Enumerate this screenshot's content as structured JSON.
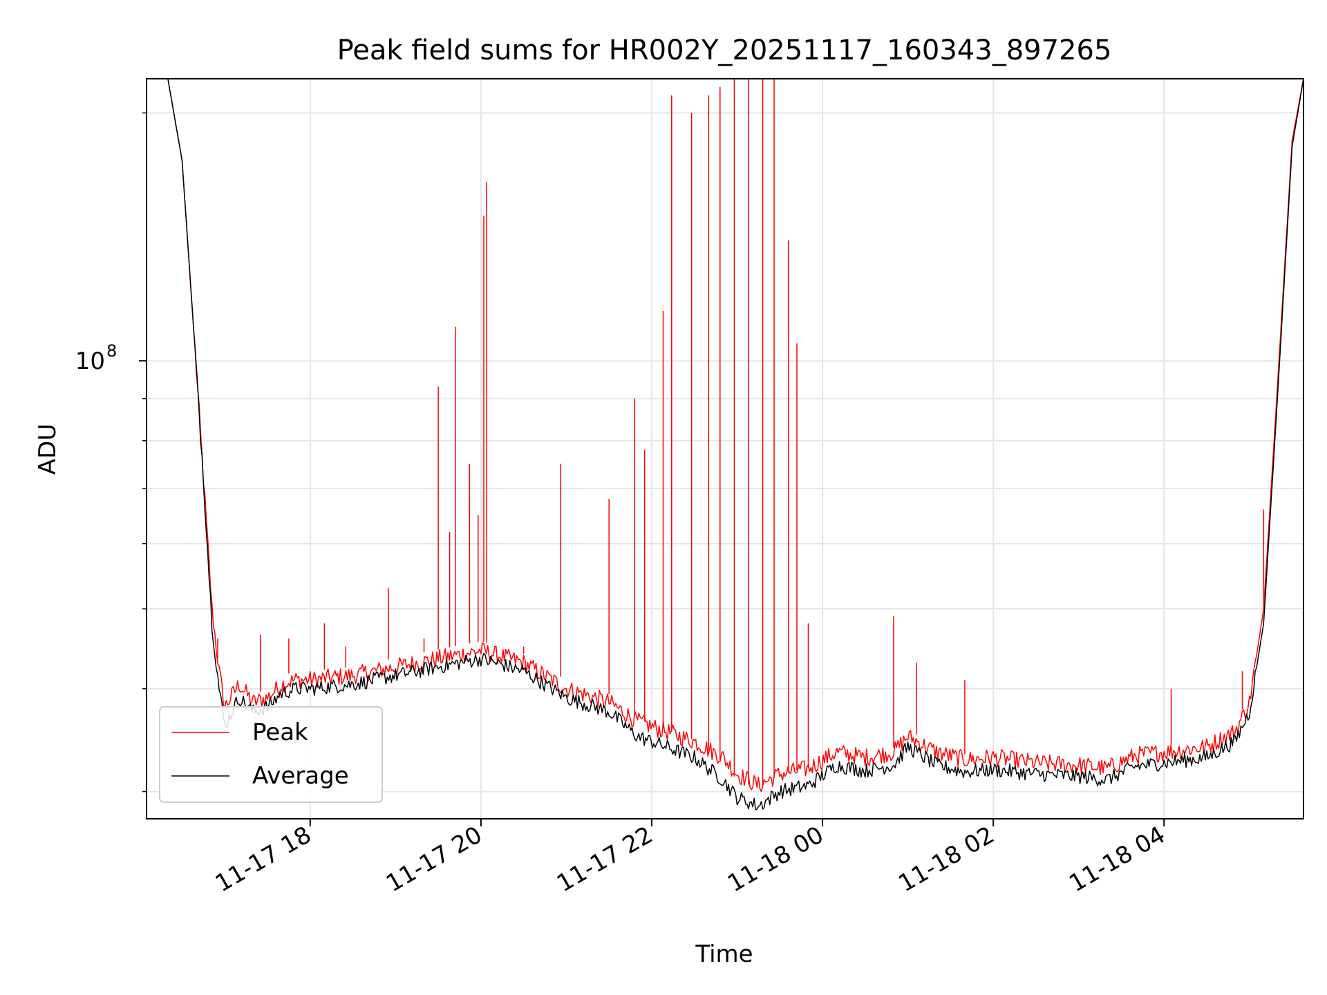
{
  "chart_data": {
    "type": "line",
    "title": "Peak field sums for HR002Y_20251117_160343_897265",
    "xlabel": "Time",
    "ylabel": "ADU",
    "y_scale": "log",
    "grid": true,
    "legend_position": "lower-left",
    "x_ticks": [
      "11-17 18",
      "11-17 20",
      "11-17 22",
      "11-18 00",
      "11-18 02",
      "11-18 04"
    ],
    "y_ticks": [
      {
        "label_base": "10",
        "label_exp": "8",
        "value": 100000000
      }
    ],
    "xlim": [
      "2025-11-17 16:05",
      "2025-11-18 05:38"
    ],
    "ylim": [
      27800000,
      220000000
    ],
    "series": [
      {
        "name": "Peak",
        "color": "#ff0000",
        "points": [
          [
            "2025-11-17 16:05",
            220000000
          ],
          [
            "2025-11-17 16:20",
            220000000
          ],
          [
            "2025-11-17 16:30",
            175000000
          ],
          [
            "2025-11-17 16:38",
            110000000
          ],
          [
            "2025-11-17 16:45",
            72000000
          ],
          [
            "2025-11-17 16:51",
            50000000
          ],
          [
            "2025-11-17 16:56",
            42000000
          ],
          [
            "2025-11-17 17:00",
            38000000
          ],
          [
            "2025-11-17 17:10",
            40500000
          ],
          [
            "2025-11-17 17:20",
            38500000
          ],
          [
            "2025-11-17 17:30",
            39000000
          ],
          [
            "2025-11-17 17:40",
            40500000
          ],
          [
            "2025-11-17 17:50",
            41000000
          ],
          [
            "2025-11-17 18:00",
            41000000
          ],
          [
            "2025-11-17 18:30",
            41500000
          ],
          [
            "2025-11-17 19:00",
            42500000
          ],
          [
            "2025-11-17 19:30",
            43500000
          ],
          [
            "2025-11-17 20:00",
            44500000
          ],
          [
            "2025-11-17 20:30",
            43000000
          ],
          [
            "2025-11-17 21:00",
            40000000
          ],
          [
            "2025-11-17 21:30",
            38500000
          ],
          [
            "2025-11-17 21:50",
            36500000
          ],
          [
            "2025-11-17 22:10",
            35500000
          ],
          [
            "2025-11-17 22:30",
            34500000
          ],
          [
            "2025-11-17 22:50",
            33000000
          ],
          [
            "2025-11-17 23:00",
            31500000
          ],
          [
            "2025-11-17 23:15",
            30500000
          ],
          [
            "2025-11-17 23:30",
            31500000
          ],
          [
            "2025-11-17 23:50",
            32000000
          ],
          [
            "2025-11-18 00:10",
            33500000
          ],
          [
            "2025-11-18 00:30",
            33000000
          ],
          [
            "2025-11-18 00:50",
            33500000
          ],
          [
            "2025-11-18 01:00",
            35000000
          ],
          [
            "2025-11-18 01:20",
            33500000
          ],
          [
            "2025-11-18 01:40",
            32800000
          ],
          [
            "2025-11-18 02:00",
            33000000
          ],
          [
            "2025-11-18 02:30",
            32500000
          ],
          [
            "2025-11-18 03:00",
            32300000
          ],
          [
            "2025-11-18 03:20",
            32000000
          ],
          [
            "2025-11-18 03:40",
            33200000
          ],
          [
            "2025-11-18 04:00",
            33500000
          ],
          [
            "2025-11-18 04:30",
            34000000
          ],
          [
            "2025-11-18 04:50",
            35500000
          ],
          [
            "2025-11-18 05:00",
            38500000
          ],
          [
            "2025-11-18 05:10",
            50000000
          ],
          [
            "2025-11-18 05:20",
            95000000
          ],
          [
            "2025-11-18 05:30",
            185000000
          ],
          [
            "2025-11-18 05:38",
            220000000
          ]
        ],
        "spikes": [
          [
            "2025-11-17 16:55",
            46000000
          ],
          [
            "2025-11-17 17:25",
            46500000
          ],
          [
            "2025-11-17 17:45",
            46000000
          ],
          [
            "2025-11-17 18:10",
            48000000
          ],
          [
            "2025-11-17 18:25",
            45000000
          ],
          [
            "2025-11-17 18:55",
            53000000
          ],
          [
            "2025-11-17 19:20",
            46000000
          ],
          [
            "2025-11-17 19:30",
            93000000
          ],
          [
            "2025-11-17 19:38",
            62000000
          ],
          [
            "2025-11-17 19:42",
            110000000
          ],
          [
            "2025-11-17 19:52",
            75000000
          ],
          [
            "2025-11-17 19:58",
            65000000
          ],
          [
            "2025-11-17 20:02",
            150000000
          ],
          [
            "2025-11-17 20:04",
            165000000
          ],
          [
            "2025-11-17 20:30",
            45000000
          ],
          [
            "2025-11-17 20:56",
            75000000
          ],
          [
            "2025-11-17 21:30",
            68000000
          ],
          [
            "2025-11-17 21:48",
            90000000
          ],
          [
            "2025-11-17 21:55",
            78000000
          ],
          [
            "2025-11-17 22:08",
            115000000
          ],
          [
            "2025-11-17 22:14",
            210000000
          ],
          [
            "2025-11-17 22:28",
            200000000
          ],
          [
            "2025-11-17 22:40",
            210000000
          ],
          [
            "2025-11-17 22:48",
            215000000
          ],
          [
            "2025-11-17 22:58",
            220000000
          ],
          [
            "2025-11-17 23:08",
            220000000
          ],
          [
            "2025-11-17 23:18",
            220000000
          ],
          [
            "2025-11-17 23:26",
            220000000
          ],
          [
            "2025-11-17 23:36",
            140000000
          ],
          [
            "2025-11-17 23:42",
            105000000
          ],
          [
            "2025-11-17 23:50",
            48000000
          ],
          [
            "2025-11-18 00:50",
            49000000
          ],
          [
            "2025-11-18 01:06",
            43000000
          ],
          [
            "2025-11-18 01:40",
            41000000
          ],
          [
            "2025-11-18 04:05",
            40000000
          ],
          [
            "2025-11-18 04:55",
            42000000
          ],
          [
            "2025-11-18 05:10",
            66000000
          ]
        ]
      },
      {
        "name": "Average",
        "color": "#000000",
        "points": [
          [
            "2025-11-17 16:05",
            220000000
          ],
          [
            "2025-11-17 16:20",
            220000000
          ],
          [
            "2025-11-17 16:30",
            175000000
          ],
          [
            "2025-11-17 16:38",
            110000000
          ],
          [
            "2025-11-17 16:45",
            72000000
          ],
          [
            "2025-11-17 16:51",
            48000000
          ],
          [
            "2025-11-17 16:56",
            40000000
          ],
          [
            "2025-11-17 17:00",
            36000000
          ],
          [
            "2025-11-17 17:10",
            39000000
          ],
          [
            "2025-11-17 17:20",
            37500000
          ],
          [
            "2025-11-17 17:30",
            38000000
          ],
          [
            "2025-11-17 17:40",
            39500000
          ],
          [
            "2025-11-17 17:50",
            40000000
          ],
          [
            "2025-11-17 18:00",
            40000000
          ],
          [
            "2025-11-17 18:30",
            40500000
          ],
          [
            "2025-11-17 19:00",
            41500000
          ],
          [
            "2025-11-17 19:30",
            42500000
          ],
          [
            "2025-11-17 20:00",
            43500000
          ],
          [
            "2025-11-17 20:30",
            42000000
          ],
          [
            "2025-11-17 21:00",
            39000000
          ],
          [
            "2025-11-17 21:30",
            37500000
          ],
          [
            "2025-11-17 21:50",
            35000000
          ],
          [
            "2025-11-17 22:10",
            34000000
          ],
          [
            "2025-11-17 22:30",
            33000000
          ],
          [
            "2025-11-17 22:50",
            31000000
          ],
          [
            "2025-11-17 23:00",
            29500000
          ],
          [
            "2025-11-17 23:15",
            28800000
          ],
          [
            "2025-11-17 23:30",
            30000000
          ],
          [
            "2025-11-17 23:50",
            30500000
          ],
          [
            "2025-11-18 00:10",
            32300000
          ],
          [
            "2025-11-18 00:30",
            31800000
          ],
          [
            "2025-11-18 00:50",
            32300000
          ],
          [
            "2025-11-18 01:00",
            34000000
          ],
          [
            "2025-11-18 01:20",
            32300000
          ],
          [
            "2025-11-18 01:40",
            31700000
          ],
          [
            "2025-11-18 02:00",
            31900000
          ],
          [
            "2025-11-18 02:30",
            31500000
          ],
          [
            "2025-11-18 03:00",
            31300000
          ],
          [
            "2025-11-18 03:20",
            31000000
          ],
          [
            "2025-11-18 03:40",
            32200000
          ],
          [
            "2025-11-18 04:00",
            32500000
          ],
          [
            "2025-11-18 04:30",
            33000000
          ],
          [
            "2025-11-18 04:50",
            34500000
          ],
          [
            "2025-11-18 05:00",
            37500000
          ],
          [
            "2025-11-18 05:10",
            48000000
          ],
          [
            "2025-11-18 05:20",
            92000000
          ],
          [
            "2025-11-18 05:30",
            182000000
          ],
          [
            "2025-11-18 05:38",
            220000000
          ]
        ]
      }
    ]
  }
}
